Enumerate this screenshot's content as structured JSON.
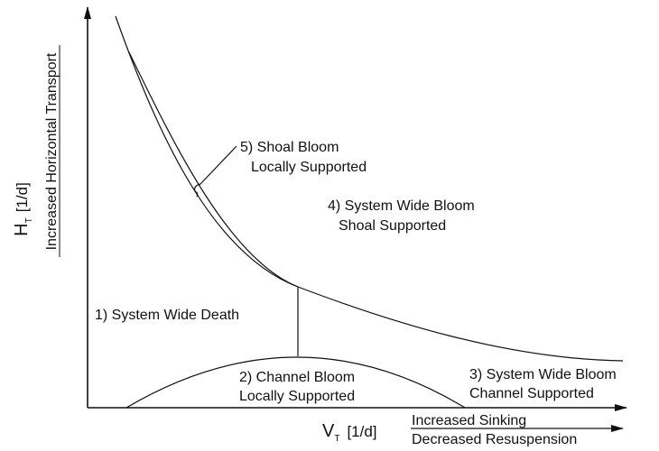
{
  "y_axis": {
    "symbol": "H",
    "subscript": "T",
    "unit": "[1/d]",
    "description": "Increased Horizontal Transport"
  },
  "x_axis": {
    "symbol": "V",
    "subscript": "T",
    "unit": "[1/d]",
    "description_top": "Increased Sinking",
    "description_bottom": "Decreased Resuspension"
  },
  "regions": [
    {
      "lines": [
        "1) System Wide Death"
      ]
    },
    {
      "lines": [
        "2) Channel Bloom",
        "Locally Supported"
      ]
    },
    {
      "lines": [
        "3) System Wide Bloom",
        "Channel Supported"
      ]
    },
    {
      "lines": [
        "4) System Wide Bloom",
        "Shoal Supported"
      ]
    },
    {
      "lines": [
        "5) Shoal Bloom",
        "Locally Supported"
      ]
    }
  ]
}
